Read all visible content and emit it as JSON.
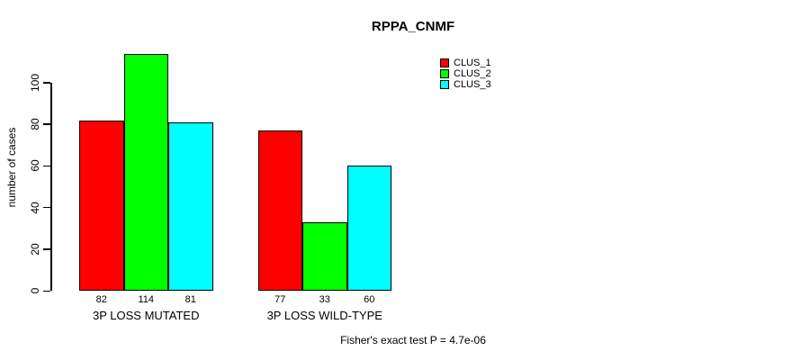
{
  "chart_data": {
    "type": "bar",
    "title": "RPPA_CNMF",
    "categories": [
      "3P LOSS MUTATED",
      "3P LOSS WILD-TYPE"
    ],
    "series": [
      {
        "name": "CLUS_1",
        "color": "#ff0000",
        "values": [
          82,
          77
        ]
      },
      {
        "name": "CLUS_2",
        "color": "#00ff00",
        "values": [
          114,
          33
        ]
      },
      {
        "name": "CLUS_3",
        "color": "#00ffff",
        "values": [
          81,
          60
        ]
      }
    ],
    "xlabel": "",
    "ylabel": "number of cases",
    "ylim": [
      0,
      100
    ],
    "yticks": [
      0,
      20,
      40,
      60,
      80,
      100
    ],
    "grid": false,
    "bar_value_labels_shown": true,
    "legend": {
      "position": "top-right",
      "entries": [
        "CLUS_1",
        "CLUS_2",
        "CLUS_3"
      ]
    },
    "annotation": "Fisher's exact test P = 4.7e-06"
  }
}
